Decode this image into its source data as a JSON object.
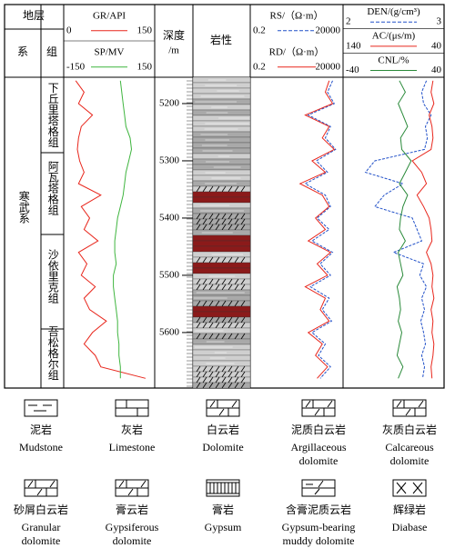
{
  "strata": {
    "title": "地层",
    "system_header": "系",
    "formation_header": "组",
    "system": "寒武系",
    "formations": [
      "下丘里塔格组",
      "阿瓦塔格组",
      "沙依里克组",
      "吾松格尔组"
    ]
  },
  "well_log": {
    "depth_title": "深度",
    "depth_unit": "/m",
    "lithology_title": "岩性",
    "depth_lim": [
      5154,
      5697
    ],
    "depth_ticks": [
      5200,
      5300,
      5400,
      5500,
      5600
    ],
    "depths": [
      5160,
      5180,
      5200,
      5220,
      5240,
      5260,
      5280,
      5300,
      5320,
      5340,
      5360,
      5380,
      5400,
      5420,
      5440,
      5460,
      5480,
      5500,
      5520,
      5540,
      5560,
      5580,
      5600,
      5620,
      5640,
      5660,
      5680
    ],
    "tracks": [
      {
        "curves": [
          {
            "name": "GR/API",
            "color": "#e8261c",
            "lim": [
              0,
              150
            ],
            "log": false,
            "dashed": false,
            "values": [
              15,
              30,
              20,
              45,
              25,
              20,
              18,
              22,
              30,
              20,
              60,
              25,
              40,
              30,
              55,
              20,
              35,
              25,
              50,
              30,
              40,
              70,
              45,
              30,
              50,
              60,
              140
            ]
          },
          {
            "name": "SP/MV",
            "color": "#3fb53f",
            "lim": [
              -150,
              150
            ],
            "log": false,
            "dashed": false,
            "values": [
              40,
              45,
              50,
              55,
              60,
              75,
              80,
              70,
              60,
              55,
              50,
              40,
              30,
              25,
              20,
              20,
              25,
              15,
              15,
              20,
              25,
              30,
              30,
              35,
              35,
              40,
              40
            ]
          }
        ]
      },
      {
        "curves": [
          {
            "name": "RS/（Ω·m）",
            "color": "#2150c8",
            "lim": [
              0.2,
              20000
            ],
            "log": true,
            "dashed": true,
            "values": [
              8000,
              4000,
              10000,
              300,
              6000,
              3000,
              12000,
              900,
              4000,
              200,
              3000,
              6000,
              1000,
              5000,
              500,
              8000,
              1500,
              6000,
              400,
              5000,
              2000,
              7000,
              500,
              3000,
              1200,
              6000,
              1500
            ]
          },
          {
            "name": "RD/（Ω·m）",
            "color": "#e8261c",
            "lim": [
              0.2,
              20000
            ],
            "log": true,
            "dashed": false,
            "values": [
              5000,
              3000,
              8000,
              200,
              5000,
              2000,
              10000,
              500,
              3000,
              100,
              2000,
              5000,
              800,
              3000,
              300,
              6000,
              1000,
              4000,
              200,
              3000,
              1500,
              5000,
              300,
              2000,
              800,
              4000,
              1000
            ]
          }
        ]
      },
      {
        "curves": [
          {
            "name": "DEN/(g/cm³)",
            "color": "#2150c8",
            "lim": [
              2,
              3
            ],
            "log": false,
            "dashed": true,
            "values": [
              2.85,
              2.8,
              2.82,
              2.9,
              2.84,
              2.86,
              2.83,
              2.3,
              2.2,
              2.6,
              2.4,
              2.3,
              2.7,
              2.75,
              2.8,
              2.5,
              2.82,
              2.78,
              2.85,
              2.8,
              2.83,
              2.79,
              2.82,
              2.84,
              2.8,
              2.83,
              2.81
            ]
          },
          {
            "name": "AC/(μs/m)",
            "color": "#e8261c",
            "lim": [
              140,
              40
            ],
            "log": false,
            "dashed": false,
            "values": [
              48,
              50,
              47,
              52,
              49,
              48,
              50,
              70,
              60,
              55,
              65,
              58,
              52,
              50,
              49,
              55,
              50,
              48,
              49,
              47,
              50,
              48,
              49,
              47,
              48,
              50,
              49
            ]
          },
          {
            "name": "CNL/%",
            "color": "#2a8a3a",
            "lim": [
              -40,
              40
            ],
            "log": false,
            "dashed": false,
            "values": [
              5,
              10,
              4,
              8,
              12,
              6,
              7,
              15,
              10,
              5,
              12,
              8,
              6,
              5,
              10,
              4,
              6,
              8,
              3,
              5,
              6,
              4,
              7,
              5,
              3,
              8,
              4
            ]
          }
        ]
      }
    ]
  },
  "legend": [
    {
      "name": "泥岩",
      "english": [
        "Mudstone"
      ]
    },
    {
      "name": "灰岩",
      "english": [
        "Limestone"
      ]
    },
    {
      "name": "白云岩",
      "english": [
        "Dolomite"
      ]
    },
    {
      "name": "泥质白云岩",
      "english": [
        "Argillaceous",
        "dolomite"
      ]
    },
    {
      "name": "灰质白云岩",
      "english": [
        "Calcareous",
        "dolomite"
      ]
    },
    {
      "name": "砂屑白云岩",
      "english": [
        "Granular",
        "dolomite"
      ]
    },
    {
      "name": "膏云岩",
      "english": [
        "Gypsiferous",
        "dolomite"
      ]
    },
    {
      "name": "膏岩",
      "english": [
        "Gypsum"
      ]
    },
    {
      "name": "含膏泥质云岩",
      "english": [
        "Gypsum-bearing",
        "muddy dolomite"
      ]
    },
    {
      "name": "辉绿岩",
      "english": [
        "Diabase"
      ]
    }
  ]
}
